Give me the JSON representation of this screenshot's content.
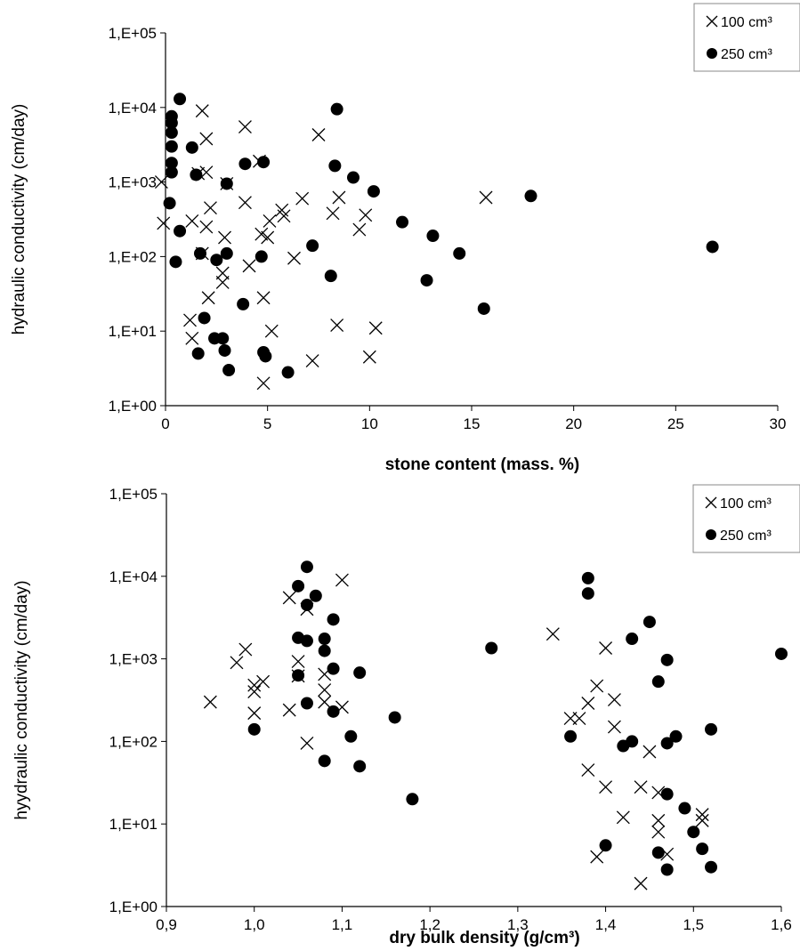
{
  "chart_data": [
    {
      "type": "scatter",
      "xlabel": "stone content  (mass. %)",
      "ylabel": "hydraulic conductivity (cm/day)",
      "xlim": [
        0,
        30
      ],
      "ylim": [
        1,
        100000
      ],
      "yscale": "log",
      "xticks": [
        "0",
        "5",
        "10",
        "15",
        "20",
        "25",
        "30"
      ],
      "yticks": [
        "1,E+00",
        "1,E+01",
        "1,E+02",
        "1,E+03",
        "1,E+04",
        "1,E+05"
      ],
      "legend_position": "top-right",
      "series": [
        {
          "name": "100 cm³",
          "marker": "x",
          "points": [
            [
              -0.2,
              1000
            ],
            [
              -0.1,
              280
            ],
            [
              1.2,
              14
            ],
            [
              1.3,
              8
            ],
            [
              1.3,
              300
            ],
            [
              1.6,
              1300
            ],
            [
              1.8,
              9000
            ],
            [
              1.8,
              110
            ],
            [
              2,
              3800
            ],
            [
              2,
              1350
            ],
            [
              2,
              250
            ],
            [
              2.1,
              28
            ],
            [
              2.2,
              450
            ],
            [
              2.8,
              60
            ],
            [
              2.8,
              45
            ],
            [
              2.9,
              180
            ],
            [
              3,
              950
            ],
            [
              3.9,
              5500
            ],
            [
              3.9,
              530
            ],
            [
              4.1,
              75
            ],
            [
              4.6,
              1900
            ],
            [
              4.7,
              200
            ],
            [
              4.8,
              2
            ],
            [
              4.8,
              28
            ],
            [
              5,
              180
            ],
            [
              5.1,
              300
            ],
            [
              5.2,
              10
            ],
            [
              5.7,
              420
            ],
            [
              5.8,
              350
            ],
            [
              6.3,
              95
            ],
            [
              6.7,
              600
            ],
            [
              7.2,
              4
            ],
            [
              7.5,
              4300
            ],
            [
              8.2,
              380
            ],
            [
              8.4,
              12
            ],
            [
              8.5,
              620
            ],
            [
              9.5,
              230
            ],
            [
              9.8,
              360
            ],
            [
              10,
              4.5
            ],
            [
              10.3,
              11
            ],
            [
              15.7,
              620
            ]
          ]
        },
        {
          "name": "250 cm³",
          "marker": "o",
          "points": [
            [
              0.2,
              520
            ],
            [
              0.3,
              7600
            ],
            [
              0.3,
              6200
            ],
            [
              0.3,
              4600
            ],
            [
              0.3,
              3000
            ],
            [
              0.3,
              1800
            ],
            [
              0.3,
              1350
            ],
            [
              0.5,
              85
            ],
            [
              0.7,
              220
            ],
            [
              0.7,
              13000
            ],
            [
              1.3,
              2900
            ],
            [
              1.5,
              1250
            ],
            [
              1.6,
              5
            ],
            [
              1.7,
              110
            ],
            [
              1.9,
              15
            ],
            [
              2.4,
              8
            ],
            [
              2.5,
              90
            ],
            [
              2.8,
              8
            ],
            [
              2.9,
              5.5
            ],
            [
              3,
              110
            ],
            [
              3,
              950
            ],
            [
              3.1,
              3
            ],
            [
              3.8,
              23
            ],
            [
              3.9,
              1750
            ],
            [
              4.7,
              100
            ],
            [
              4.8,
              1850
            ],
            [
              4.8,
              5.2
            ],
            [
              4.9,
              4.6
            ],
            [
              6,
              2.8
            ],
            [
              7.2,
              140
            ],
            [
              8.1,
              55
            ],
            [
              8.3,
              1650
            ],
            [
              8.4,
              9500
            ],
            [
              9.2,
              1150
            ],
            [
              10.2,
              750
            ],
            [
              11.6,
              290
            ],
            [
              12.8,
              48
            ],
            [
              13.1,
              190
            ],
            [
              14.4,
              110
            ],
            [
              15.6,
              20
            ],
            [
              17.9,
              650
            ],
            [
              26.8,
              135
            ]
          ]
        }
      ]
    },
    {
      "type": "scatter",
      "xlabel": "dry bulk density (g/cm³)",
      "ylabel": "hyydraulic conductivity (cm/day)",
      "xlim": [
        0.9,
        1.6
      ],
      "ylim": [
        1,
        100000
      ],
      "yscale": "log",
      "xticks": [
        "0,9",
        "1,0",
        "1,1",
        "1,2",
        "1,3",
        "1,4",
        "1,5",
        "1,6"
      ],
      "yticks": [
        "1,E+00",
        "1,E+01",
        "1,E+02",
        "1,E+03",
        "1,E+04",
        "1,E+05"
      ],
      "legend_position": "top-right",
      "series": [
        {
          "name": "100 cm³",
          "marker": "x",
          "points": [
            [
              0.95,
              300
            ],
            [
              0.98,
              900
            ],
            [
              0.99,
              1300
            ],
            [
              1,
              480
            ],
            [
              1,
              400
            ],
            [
              1,
              220
            ],
            [
              1.01,
              530
            ],
            [
              1.04,
              5500
            ],
            [
              1.04,
              240
            ],
            [
              1.05,
              930
            ],
            [
              1.05,
              620
            ],
            [
              1.06,
              4000
            ],
            [
              1.06,
              95
            ],
            [
              1.08,
              650
            ],
            [
              1.08,
              420
            ],
            [
              1.08,
              300
            ],
            [
              1.1,
              9000
            ],
            [
              1.1,
              260
            ],
            [
              1.34,
              2000
            ],
            [
              1.36,
              190
            ],
            [
              1.37,
              190
            ],
            [
              1.38,
              290
            ],
            [
              1.38,
              45
            ],
            [
              1.39,
              470
            ],
            [
              1.39,
              4
            ],
            [
              1.4,
              1350
            ],
            [
              1.4,
              28
            ],
            [
              1.41,
              320
            ],
            [
              1.41,
              150
            ],
            [
              1.42,
              12
            ],
            [
              1.44,
              28
            ],
            [
              1.44,
              1.9
            ],
            [
              1.45,
              75
            ],
            [
              1.46,
              24
            ],
            [
              1.46,
              11
            ],
            [
              1.46,
              8
            ],
            [
              1.47,
              4.3
            ],
            [
              1.51,
              13
            ],
            [
              1.51,
              11
            ]
          ]
        },
        {
          "name": "250 cm³",
          "marker": "o",
          "points": [
            [
              1,
              140
            ],
            [
              1.05,
              7600
            ],
            [
              1.05,
              1800
            ],
            [
              1.05,
              630
            ],
            [
              1.06,
              13000
            ],
            [
              1.06,
              4500
            ],
            [
              1.06,
              1650
            ],
            [
              1.06,
              290
            ],
            [
              1.07,
              5800
            ],
            [
              1.08,
              1750
            ],
            [
              1.08,
              1250
            ],
            [
              1.08,
              58
            ],
            [
              1.09,
              3000
            ],
            [
              1.09,
              760
            ],
            [
              1.09,
              230
            ],
            [
              1.11,
              115
            ],
            [
              1.12,
              680
            ],
            [
              1.12,
              50
            ],
            [
              1.16,
              195
            ],
            [
              1.18,
              20
            ],
            [
              1.27,
              1350
            ],
            [
              1.36,
              115
            ],
            [
              1.38,
              9500
            ],
            [
              1.38,
              6200
            ],
            [
              1.4,
              5.5
            ],
            [
              1.42,
              88
            ],
            [
              1.43,
              1750
            ],
            [
              1.43,
              100
            ],
            [
              1.45,
              2800
            ],
            [
              1.46,
              530
            ],
            [
              1.46,
              4.5
            ],
            [
              1.47,
              970
            ],
            [
              1.47,
              95
            ],
            [
              1.47,
              23
            ],
            [
              1.47,
              2.8
            ],
            [
              1.48,
              115
            ],
            [
              1.49,
              15.5
            ],
            [
              1.5,
              8
            ],
            [
              1.51,
              5
            ],
            [
              1.52,
              140
            ],
            [
              1.52,
              3
            ],
            [
              1.6,
              1150
            ]
          ]
        }
      ]
    }
  ]
}
